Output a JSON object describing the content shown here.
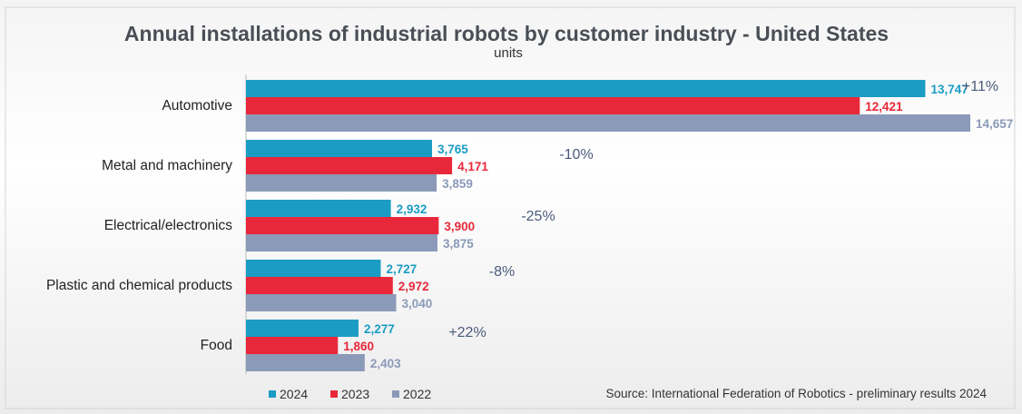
{
  "chart_data": {
    "type": "bar",
    "orientation": "horizontal",
    "title": "Annual installations of industrial robots by customer industry - United States",
    "subtitle": "units",
    "categories": [
      "Automotive",
      "Metal and machinery",
      "Electrical/electronics",
      "Plastic and chemical products",
      "Food"
    ],
    "series": [
      {
        "name": "2024",
        "color": "#1a9cc4",
        "values": [
          13747,
          3765,
          2932,
          2727,
          2277
        ],
        "labels": [
          "13,747",
          "3,765",
          "2,932",
          "2,727",
          "2,277"
        ]
      },
      {
        "name": "2023",
        "color": "#e8283a",
        "values": [
          12421,
          4171,
          3900,
          2972,
          1860
        ],
        "labels": [
          "12,421",
          "4,171",
          "3,900",
          "2,972",
          "1,860"
        ]
      },
      {
        "name": "2022",
        "color": "#8b9ab8",
        "values": [
          14657,
          3859,
          3875,
          3040,
          2403
        ],
        "labels": [
          "14,657",
          "3,859",
          "3,875",
          "3,040",
          "2,403"
        ]
      }
    ],
    "annotations": [
      "+11%",
      "-10%",
      "-25%",
      "-8%",
      "+22%"
    ],
    "legend_position": "bottom-left",
    "grid": false
  },
  "source": "Source: International Federation of Robotics - preliminary results 2024"
}
